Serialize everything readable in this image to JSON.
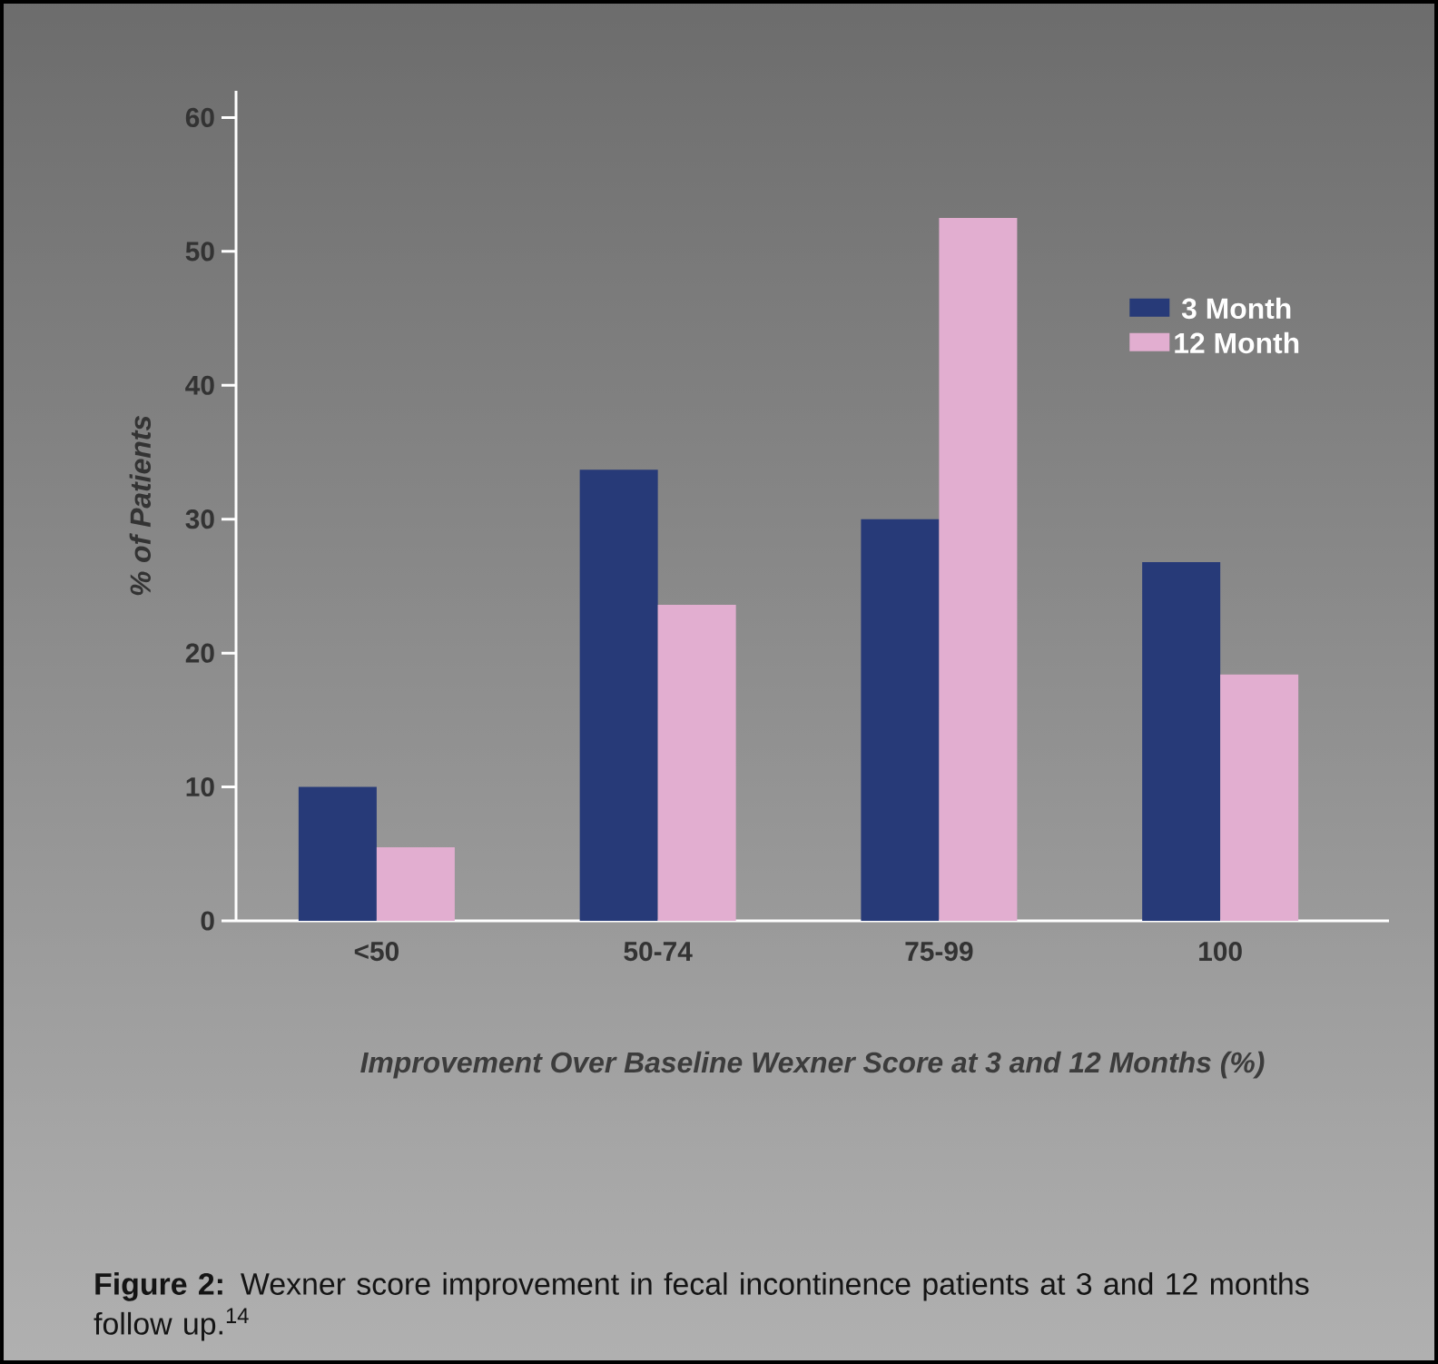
{
  "chart_data": {
    "type": "bar",
    "categories": [
      "<50",
      "50-74",
      "75-99",
      "100"
    ],
    "series": [
      {
        "name": "3 Month",
        "color": "#273a78",
        "values": [
          10,
          33.7,
          30,
          26.8
        ]
      },
      {
        "name": "12 Month",
        "color": "#e2aed0",
        "values": [
          5.5,
          23.6,
          52.5,
          18.4
        ]
      }
    ],
    "ylim": [
      0,
      62
    ],
    "yticks": [
      0,
      10,
      20,
      30,
      40,
      50,
      60
    ],
    "xlabel": "Improvement Over Baseline Wexner Score at 3 and 12 Months (%)",
    "ylabel": "% of Patients",
    "legend": "top right",
    "annotations": [
      "**Figure 2:** Wexner score improvement in fecal incontinence patients at 3 and 12 months follow up.$^{14}$"
    ]
  }
}
